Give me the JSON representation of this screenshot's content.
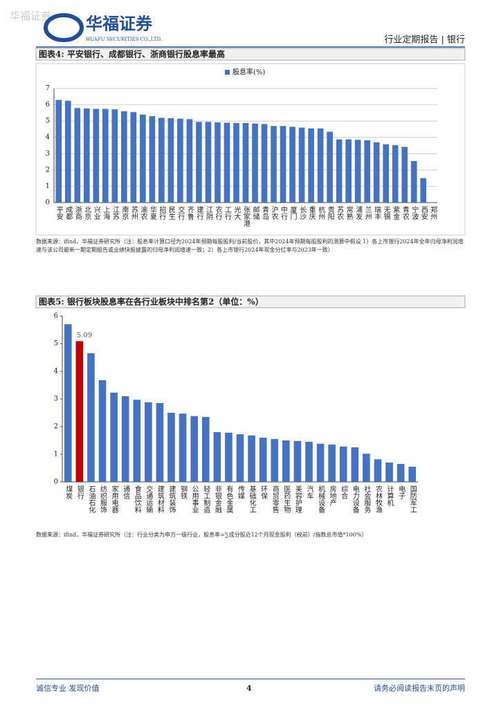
{
  "header": {
    "watermark": "华福证券",
    "logo": "华福证券",
    "logo_en": "HUAFU SECURITIES CO.,LTD.",
    "report_type": "行业定期报告 | 银行"
  },
  "chart_data": [
    {
      "type": "bar",
      "title": "图表4: 平安银行、成都银行、浙商银行股息率最高",
      "categories": [
        "平安",
        "成都",
        "浙商",
        "北京",
        "兴业",
        "上海",
        "江苏",
        "南京",
        "苏州",
        "渝农",
        "华夏",
        "招行",
        "民生",
        "交行",
        "齐鲁",
        "建行",
        "江阴",
        "农行",
        "工行",
        "光大",
        "张家港",
        "邮储",
        "青岛",
        "沪农",
        "中行",
        "厦门",
        "长沙",
        "重庆",
        "杭州",
        "贵阳",
        "苏农",
        "常熟",
        "浦发",
        "兰州",
        "瑞丰",
        "无锡",
        "紫金",
        "青农",
        "宁波",
        "西安",
        "郑州"
      ],
      "series": [
        {
          "name": "股息率(%)",
          "color": "#4472c4",
          "values": [
            6.3,
            6.25,
            5.8,
            5.78,
            5.75,
            5.75,
            5.72,
            5.6,
            5.55,
            5.4,
            5.3,
            5.2,
            5.18,
            5.15,
            5.12,
            4.95,
            4.95,
            4.92,
            4.9,
            4.88,
            4.88,
            4.85,
            4.82,
            4.7,
            4.7,
            4.65,
            4.6,
            4.55,
            4.55,
            4.35,
            3.88,
            3.88,
            3.85,
            3.82,
            3.7,
            3.58,
            3.52,
            3.42,
            2.55,
            1.5,
            0
          ]
        }
      ],
      "ylim": [
        0,
        7
      ],
      "yticks": [
        0,
        1,
        2,
        3,
        4,
        5,
        6,
        7
      ],
      "grid": true,
      "legend": "top",
      "source": "数据来源：ifind，华福证券研究所（注：股息率计算口径为2024年预期每股股利/当前股价，其中2024年预期每股股利的测算中假设 1）各上市银行2024年全年归母净利润增速与该公司最新一期定期报告或业绩快报披露的归母净利润增速一致；2）各上市银行2024年现金分红率与2023年一致）"
    },
    {
      "type": "bar",
      "title": "图表5: 银行板块股息率在各行业板块中排名第2（单位：%）",
      "categories": [
        "煤炭",
        "银行",
        "石油石化",
        "纺织服饰",
        "家用电器",
        "通信",
        "食品饮料",
        "交通运输",
        "建筑材料",
        "建筑装饰",
        "钢铁",
        "公用事业",
        "轻工制造",
        "非银金融",
        "有色金属",
        "传媒",
        "基础化工",
        "环保",
        "商贸零售",
        "医药生物",
        "美容护理",
        "汽车",
        "机械设备",
        "房地产",
        "综合",
        "电力设备",
        "社会服务",
        "农林牧渔",
        "计算机",
        "电子",
        "国防军工"
      ],
      "values": [
        5.7,
        5.09,
        4.65,
        3.68,
        3.23,
        3.1,
        2.97,
        2.88,
        2.85,
        2.5,
        2.47,
        2.38,
        2.35,
        1.8,
        1.78,
        1.72,
        1.68,
        1.6,
        1.55,
        1.5,
        1.48,
        1.45,
        1.38,
        1.35,
        1.28,
        1.25,
        1.02,
        0.82,
        0.7,
        0.65,
        0.55
      ],
      "colors": [
        "#4472c4",
        "#c00000",
        "#4472c4",
        "#4472c4",
        "#4472c4",
        "#4472c4",
        "#4472c4",
        "#4472c4",
        "#4472c4",
        "#4472c4",
        "#4472c4",
        "#4472c4",
        "#4472c4",
        "#4472c4",
        "#4472c4",
        "#4472c4",
        "#4472c4",
        "#4472c4",
        "#4472c4",
        "#4472c4",
        "#4472c4",
        "#4472c4",
        "#4472c4",
        "#4472c4",
        "#4472c4",
        "#4472c4",
        "#4472c4",
        "#4472c4",
        "#4472c4",
        "#4472c4",
        "#4472c4"
      ],
      "labeled_index": [
        1
      ],
      "ylim": [
        0,
        6
      ],
      "yticks": [
        0,
        1,
        2,
        3,
        4,
        5,
        6
      ],
      "grid": false,
      "source": "数据来源：ifind，华福证券研究所（注：行业分类为申万一级行业，股息率=∑成分股近12个月现金股利（税前）/指数总市值*100%）"
    }
  ],
  "footer": {
    "left": "诚信专业  发现价值",
    "page": "4",
    "right": "请务必阅读报告末页的声明"
  }
}
